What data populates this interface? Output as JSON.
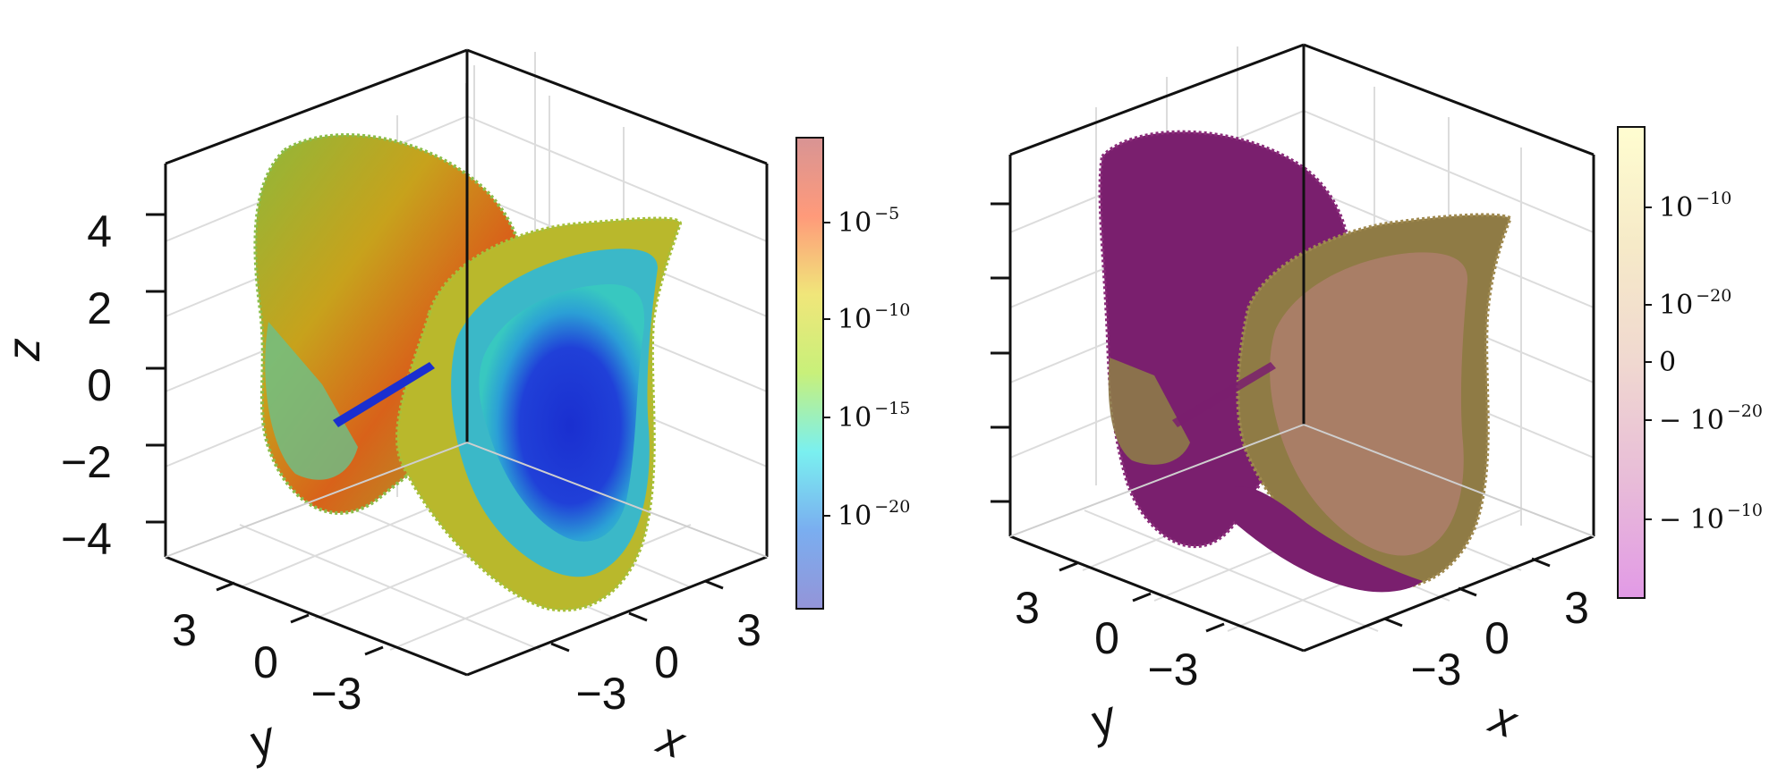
{
  "chart_data": [
    {
      "type": "scatter",
      "projection": "3d-voxel",
      "xlabel": "x",
      "ylabel": "y",
      "zlabel": "z",
      "x_ticks": [
        "−3",
        "0",
        "3"
      ],
      "y_ticks": [
        "3",
        "0",
        "−3"
      ],
      "z_ticks": [
        "4",
        "2",
        "0",
        "−2",
        "−4"
      ],
      "xlim": [
        -4.5,
        4.5
      ],
      "ylim": [
        -4.5,
        4.5
      ],
      "zlim": [
        -5,
        5
      ],
      "grid": true,
      "colormap": "turbo",
      "colorbar": {
        "scale": "log",
        "ticks": [
          {
            "base": "10",
            "exp": "−5"
          },
          {
            "base": "10",
            "exp": "−10"
          },
          {
            "base": "10",
            "exp": "−15"
          },
          {
            "base": "10",
            "exp": "−20"
          }
        ],
        "colors": [
          "#9494d8",
          "#7aaef0",
          "#7af0f0",
          "#c8f07a",
          "#f0e67a",
          "#ff9a7a",
          "#d89494"
        ]
      }
    },
    {
      "type": "scatter",
      "projection": "3d-voxel",
      "xlabel": "x",
      "ylabel": "y",
      "x_ticks": [
        "−3",
        "0",
        "3"
      ],
      "y_ticks": [
        "3",
        "0",
        "−3"
      ],
      "xlim": [
        -4.5,
        4.5
      ],
      "ylim": [
        -4.5,
        4.5
      ],
      "zlim": [
        -5,
        5
      ],
      "grid": true,
      "colormap": "magma-diverging",
      "colorbar": {
        "scale": "symlog",
        "ticks": [
          {
            "base": "10",
            "exp": "−10"
          },
          {
            "base": "10",
            "exp": "−20"
          },
          {
            "base": "0",
            "exp": ""
          },
          {
            "base": "− 10",
            "exp": "−20"
          },
          {
            "base": "− 10",
            "exp": "−10"
          }
        ],
        "colors": [
          "#e29ae6",
          "#e8bcd8",
          "#f0d8d0",
          "#f6eac8",
          "#fffdd0"
        ]
      }
    }
  ]
}
